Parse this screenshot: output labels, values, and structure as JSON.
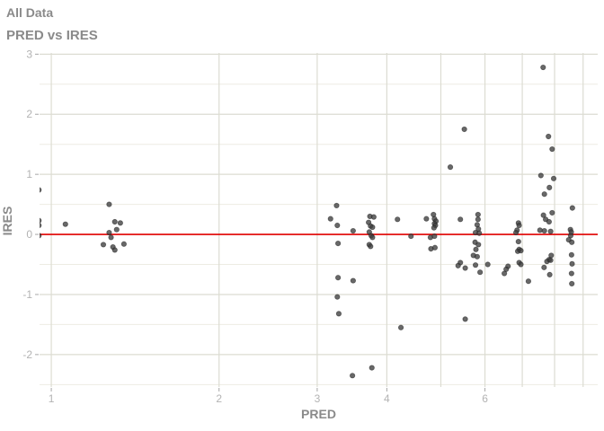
{
  "header": {
    "title": "All Data",
    "subtitle": "PRED vs IRES"
  },
  "colors": {
    "title_text": "#8a8a8a",
    "tick_label": "#b3b3b3",
    "tick_mark": "#a6a6a6",
    "grid_major": "#dcdcd2",
    "grid_minor": "#edece3",
    "ref_line": "#e10000",
    "point_fill": "#3d3d3d",
    "background": "#ffffff"
  },
  "chart_data": {
    "type": "scatter",
    "title": "All Data",
    "subtitle": "PRED vs IRES",
    "xlabel": "PRED",
    "ylabel": "IRES",
    "x_scale": "log10",
    "xlim": [
      0.9526,
      9.56
    ],
    "ylim": [
      -2.54,
      3.02
    ],
    "x_tick_labels": [
      1,
      2,
      3,
      4,
      6
    ],
    "x_gridlines": [
      1,
      2,
      3,
      4,
      5,
      6,
      7,
      8,
      9
    ],
    "y_tick_labels": [
      -2,
      -1,
      0,
      1,
      2,
      3
    ],
    "y_minor_gridlines": [
      -2.5,
      -1.5,
      -0.5,
      0.5,
      1.5,
      2.5
    ],
    "grid": true,
    "legend": "none",
    "ref_line": {
      "y": 0
    },
    "points": [
      [
        0.95,
        0.74
      ],
      [
        0.95,
        0.23
      ],
      [
        0.95,
        0.15
      ],
      [
        0.95,
        -0.02
      ],
      [
        1.06,
        0.17
      ],
      [
        1.27,
        0.5
      ],
      [
        1.3,
        0.21
      ],
      [
        1.33,
        0.19
      ],
      [
        1.31,
        0.08
      ],
      [
        1.27,
        0.03
      ],
      [
        1.28,
        -0.05
      ],
      [
        1.24,
        -0.17
      ],
      [
        1.29,
        -0.21
      ],
      [
        1.3,
        -0.26
      ],
      [
        1.35,
        -0.16
      ],
      [
        3.25,
        0.48
      ],
      [
        3.17,
        0.26
      ],
      [
        3.26,
        0.15
      ],
      [
        3.48,
        0.06
      ],
      [
        3.27,
        -0.15
      ],
      [
        3.27,
        -0.72
      ],
      [
        3.48,
        -0.77
      ],
      [
        3.26,
        -1.04
      ],
      [
        3.28,
        -1.32
      ],
      [
        3.47,
        -2.35
      ],
      [
        3.73,
        0.3
      ],
      [
        3.79,
        0.29
      ],
      [
        3.71,
        0.2
      ],
      [
        3.74,
        0.14
      ],
      [
        3.77,
        0.12
      ],
      [
        3.72,
        0.04
      ],
      [
        3.75,
        -0.02
      ],
      [
        3.77,
        -0.05
      ],
      [
        3.72,
        -0.17
      ],
      [
        3.74,
        -0.2
      ],
      [
        3.76,
        -2.22
      ],
      [
        4.18,
        0.25
      ],
      [
        4.24,
        -1.55
      ],
      [
        4.42,
        -0.03
      ],
      [
        4.71,
        0.26
      ],
      [
        4.85,
        0.33
      ],
      [
        4.87,
        0.26
      ],
      [
        4.9,
        0.22
      ],
      [
        4.87,
        0.18
      ],
      [
        4.89,
        0.15
      ],
      [
        4.86,
        0.11
      ],
      [
        4.79,
        -0.05
      ],
      [
        4.87,
        -0.03
      ],
      [
        4.8,
        -0.24
      ],
      [
        4.88,
        -0.22
      ],
      [
        5.2,
        1.12
      ],
      [
        5.51,
        1.75
      ],
      [
        5.42,
        0.25
      ],
      [
        5.42,
        -0.47
      ],
      [
        5.37,
        -0.52
      ],
      [
        5.53,
        -0.56
      ],
      [
        5.53,
        -1.41
      ],
      [
        5.83,
        0.33
      ],
      [
        5.83,
        0.25
      ],
      [
        5.81,
        0.16
      ],
      [
        5.84,
        0.09
      ],
      [
        5.77,
        0.03
      ],
      [
        5.86,
        0.02
      ],
      [
        5.76,
        -0.13
      ],
      [
        5.84,
        -0.17
      ],
      [
        5.78,
        -0.25
      ],
      [
        5.72,
        -0.35
      ],
      [
        5.81,
        -0.37
      ],
      [
        5.77,
        -0.51
      ],
      [
        5.88,
        -0.63
      ],
      [
        6.07,
        -0.5
      ],
      [
        6.6,
        -0.53
      ],
      [
        6.55,
        -0.58
      ],
      [
        6.5,
        -0.65
      ],
      [
        6.89,
        0.19
      ],
      [
        6.91,
        0.15
      ],
      [
        6.85,
        0.07
      ],
      [
        6.82,
        0.03
      ],
      [
        6.89,
        -0.12
      ],
      [
        6.91,
        -0.25
      ],
      [
        6.87,
        -0.28
      ],
      [
        6.96,
        -0.27
      ],
      [
        6.91,
        -0.47
      ],
      [
        6.96,
        -0.5
      ],
      [
        7.18,
        -0.78
      ],
      [
        7.63,
        2.78
      ],
      [
        7.8,
        1.63
      ],
      [
        7.92,
        1.42
      ],
      [
        7.56,
        0.98
      ],
      [
        7.97,
        0.93
      ],
      [
        7.83,
        0.78
      ],
      [
        7.67,
        0.67
      ],
      [
        7.92,
        0.36
      ],
      [
        7.64,
        0.32
      ],
      [
        7.71,
        0.25
      ],
      [
        7.82,
        0.21
      ],
      [
        7.53,
        0.07
      ],
      [
        7.67,
        0.06
      ],
      [
        7.87,
        0.05
      ],
      [
        7.89,
        -0.35
      ],
      [
        7.82,
        -0.42
      ],
      [
        7.75,
        -0.45
      ],
      [
        7.87,
        -0.43
      ],
      [
        7.66,
        -0.55
      ],
      [
        7.84,
        -0.67
      ],
      [
        8.61,
        0.44
      ],
      [
        8.54,
        0.08
      ],
      [
        8.57,
        0.04
      ],
      [
        8.55,
        -0.02
      ],
      [
        8.48,
        -0.09
      ],
      [
        8.59,
        -0.13
      ],
      [
        8.58,
        -0.34
      ],
      [
        8.6,
        -0.49
      ],
      [
        8.58,
        -0.65
      ],
      [
        8.59,
        -0.82
      ]
    ]
  }
}
